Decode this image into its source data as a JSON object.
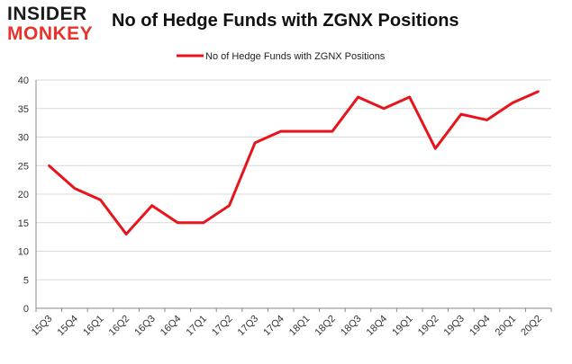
{
  "logo": {
    "line1": "INSIDER",
    "line2": "MONKEY"
  },
  "colors": {
    "series": "#e8141b",
    "grid": "#d9d9d9",
    "axis": "#888888"
  },
  "chart_data": {
    "type": "line",
    "title": "No of Hedge Funds with ZGNX Positions",
    "xlabel": "",
    "ylabel": "",
    "categories": [
      "15Q3",
      "15Q4",
      "16Q1",
      "16Q2",
      "16Q3",
      "16Q4",
      "17Q1",
      "17Q2",
      "17Q3",
      "17Q4",
      "18Q1",
      "18Q2",
      "18Q3",
      "18Q4",
      "19Q1",
      "19Q2",
      "19Q3",
      "19Q4",
      "20Q1",
      "20Q2"
    ],
    "series": [
      {
        "name": "No of Hedge Funds with ZGNX Positions",
        "values": [
          25,
          21,
          19,
          13,
          18,
          15,
          15,
          18,
          29,
          31,
          31,
          31,
          37,
          35,
          37,
          28,
          34,
          33,
          36,
          38
        ]
      }
    ],
    "ylim": [
      0,
      40
    ],
    "yticks": [
      0,
      5,
      10,
      15,
      20,
      25,
      30,
      35,
      40
    ],
    "grid": true,
    "legend": "top-center"
  }
}
